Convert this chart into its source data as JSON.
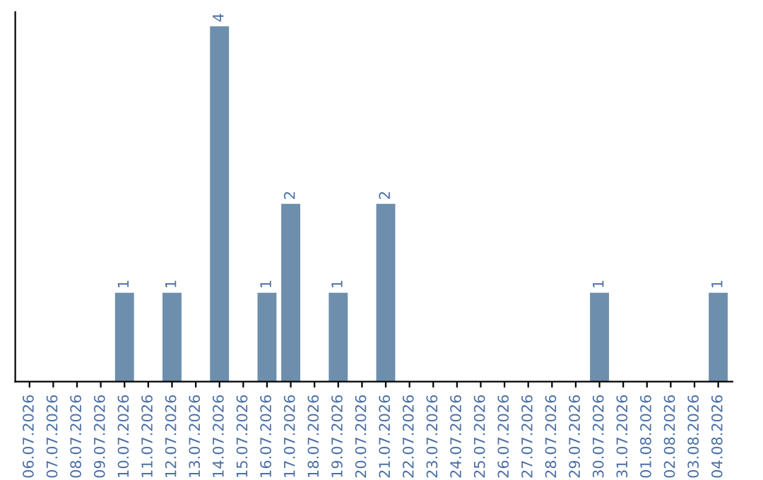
{
  "chart_data": {
    "type": "bar",
    "categories": [
      "06.07.2026",
      "07.07.2026",
      "08.07.2026",
      "09.07.2026",
      "10.07.2026",
      "11.07.2026",
      "12.07.2026",
      "13.07.2026",
      "14.07.2026",
      "15.07.2026",
      "16.07.2026",
      "17.07.2026",
      "18.07.2026",
      "19.07.2026",
      "20.07.2026",
      "21.07.2026",
      "22.07.2026",
      "23.07.2026",
      "24.07.2026",
      "25.07.2026",
      "26.07.2026",
      "27.07.2026",
      "28.07.2026",
      "29.07.2026",
      "30.07.2026",
      "31.07.2026",
      "01.08.2026",
      "02.08.2026",
      "03.08.2026",
      "04.08.2026"
    ],
    "values": [
      0,
      0,
      0,
      0,
      1,
      0,
      1,
      0,
      4,
      0,
      1,
      2,
      0,
      1,
      0,
      2,
      0,
      0,
      0,
      0,
      0,
      0,
      0,
      0,
      1,
      0,
      0,
      0,
      0,
      1
    ],
    "value_labels": [
      null,
      null,
      null,
      null,
      "1",
      null,
      "1",
      null,
      "4",
      null,
      "1",
      "2",
      null,
      "1",
      null,
      "2",
      null,
      null,
      null,
      null,
      null,
      null,
      null,
      null,
      "1",
      null,
      null,
      null,
      null,
      "1"
    ],
    "color": "#6d8fad",
    "grid": false,
    "tick_labels": "x"
  }
}
